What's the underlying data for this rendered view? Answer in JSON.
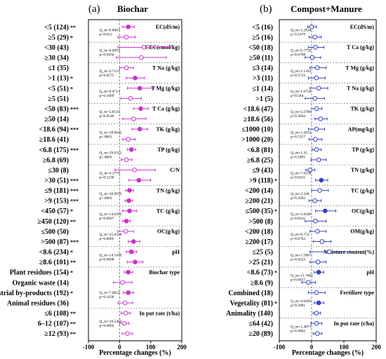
{
  "chart_data": [
    {
      "type": "forest",
      "panel_letter": "(a)",
      "title": "Biochar",
      "xlabel": "Percentage changes (%)",
      "xlim": [
        -100,
        200
      ],
      "xticks": [
        "-100",
        "0",
        "100",
        "200"
      ],
      "color": "#cc33cc",
      "groups": [
        {
          "name": "EC(dS/m)",
          "q": "Q_m=0.8407",
          "p": "p=0.812",
          "rows": [
            {
              "label": "<5 (124)",
              "sig": "**",
              "est": 28,
              "lo": 10,
              "hi": 48,
              "filled": true
            },
            {
              "label": "≥5 (29)",
              "sig": "*",
              "est": 22,
              "lo": -5,
              "hi": 50,
              "filled": false
            }
          ]
        },
        {
          "name": "CEC(cmol/kg)",
          "q": "Q_m=0.0093",
          "p": "p=0.9456",
          "rows": [
            {
              "label": "<30 (43)",
              "sig": "",
              "est": 78,
              "lo": -5,
              "hi": 165,
              "filled": false
            },
            {
              "label": "≥30 (34)",
              "sig": "",
              "est": 70,
              "lo": -10,
              "hi": 150,
              "filled": false
            }
          ]
        },
        {
          "name": "T Na (g/kg)",
          "q": "Q_m=5.7121",
          "p": "p=0.0575",
          "rows": [
            {
              "label": "≤1 (35)",
              "sig": "",
              "est": 22,
              "lo": 0,
              "hi": 45,
              "filled": false
            },
            {
              "label": ">1 (13)",
              "sig": "*",
              "est": 50,
              "lo": 22,
              "hi": 80,
              "filled": true
            }
          ]
        },
        {
          "name": "T Mg (g/kg)",
          "q": "Q_m=0.4713",
          "p": "p=0.1069",
          "rows": [
            {
              "label": "<5 (51)",
              "sig": "*",
              "est": 65,
              "lo": 25,
              "hi": 110,
              "filled": true
            },
            {
              "label": "≥5 (51)",
              "sig": "",
              "est": 35,
              "lo": 5,
              "hi": 70,
              "filled": false
            }
          ]
        },
        {
          "name": "T Ca (g/kg)",
          "q": "Q_m=5.8135",
          "p": "p=0.0546",
          "rows": [
            {
              "label": "<50 (83)",
              "sig": "***",
              "est": 68,
              "lo": 45,
              "hi": 92,
              "filled": true
            },
            {
              "label": "≥50 (14)",
              "sig": "",
              "est": 45,
              "lo": 10,
              "hi": 85,
              "filled": false
            }
          ]
        },
        {
          "name": "TK (g/kg)",
          "q": "Q_m=18.0012",
          "p": "p=.0001",
          "rows": [
            {
              "label": "<18.6 (94)",
              "sig": "***",
              "est": 65,
              "lo": 40,
              "hi": 90,
              "filled": true
            },
            {
              "label": "≥18.6 (41)",
              "sig": "",
              "est": 28,
              "lo": 10,
              "hi": 50,
              "filled": false
            }
          ]
        },
        {
          "name": "TP (g/kg)",
          "q": "Q_m=19.0351",
          "p": "p=.0001",
          "rows": [
            {
              "label": "<6.8 (175)",
              "sig": "***",
              "est": 38,
              "lo": 25,
              "hi": 52,
              "filled": true
            },
            {
              "label": "≥6.8 (69)",
              "sig": "",
              "est": 22,
              "lo": 5,
              "hi": 40,
              "filled": false
            }
          ]
        },
        {
          "name": "C/N",
          "q": "Q_m=4.1776",
          "p": "p=0.1230",
          "rows": [
            {
              "label": "≤30 (8)",
              "sig": "",
              "est": 48,
              "lo": -15,
              "hi": 115,
              "filled": false
            },
            {
              "label": ">30 (51)",
              "sig": "***",
              "est": 62,
              "lo": 30,
              "hi": 100,
              "filled": true
            }
          ]
        },
        {
          "name": "TN (g/kg)",
          "q": "Q_m=18.9955",
          "p": "p=.0001",
          "rows": [
            {
              "label": "≤9 (181)",
              "sig": "***",
              "est": 32,
              "lo": 20,
              "hi": 45,
              "filled": true
            },
            {
              "label": ">9 (153)",
              "sig": "***",
              "est": 30,
              "lo": 18,
              "hi": 42,
              "filled": true
            }
          ]
        },
        {
          "name": "TC (g/kg)",
          "q": "Q_m=14.6395",
          "p": "p=0.0007",
          "rows": [
            {
              "label": "<450 (57)",
              "sig": "*",
              "est": 32,
              "lo": 10,
              "hi": 55,
              "filled": true
            },
            {
              "label": "≥450 (120)",
              "sig": "**",
              "est": 22,
              "lo": 10,
              "hi": 35,
              "filled": true
            }
          ]
        },
        {
          "name": "OC(g/kg)",
          "q": "Q_m=15.0339",
          "p": "p=0.0005",
          "rows": [
            {
              "label": "≤500 (50)",
              "sig": "",
              "est": 20,
              "lo": -5,
              "hi": 45,
              "filled": false
            },
            {
              "label": ">500 (87)",
              "sig": "***",
              "est": 45,
              "lo": 28,
              "hi": 65,
              "filled": true
            }
          ]
        },
        {
          "name": "pH",
          "q": "Q_m=14.1479",
          "p": "p=0.0008",
          "rows": [
            {
              "label": "<8.6 (234)",
              "sig": "*",
              "est": 38,
              "lo": 22,
              "hi": 55,
              "filled": true
            },
            {
              "label": "≥8.6 (101)",
              "sig": "**",
              "est": 50,
              "lo": 25,
              "hi": 75,
              "filled": true
            }
          ]
        },
        {
          "name": "Biochar type",
          "q": "",
          "p": "",
          "rows": [
            {
              "label": "Plant residues (154)",
              "sig": "*",
              "est": 28,
              "lo": 15,
              "hi": 42,
              "filled": true
            },
            {
              "label": "Organic waste (14)",
              "sig": "",
              "est": 10,
              "lo": -20,
              "hi": 40,
              "filled": false
            },
            {
              "label": "Industrial by-products (192)",
              "sig": "*",
              "est": 28,
              "lo": 12,
              "hi": 45,
              "filled": true
            },
            {
              "label": "Animal residues (36)",
              "sig": "",
              "est": 18,
              "lo": -5,
              "hi": 42,
              "filled": false
            }
          ],
          "q2": "Q_m=7.6052",
          "p2": "p=0.1038"
        },
        {
          "name": "In put rate (t/ha)",
          "q": "Q_m=19.5484",
          "p": "p=0.0002",
          "rows": [
            {
              "label": "≤6 (108)",
              "sig": "**",
              "est": 20,
              "lo": 5,
              "hi": 35,
              "filled": false
            },
            {
              "label": "6–12 (107)",
              "sig": "**",
              "est": 15,
              "lo": 0,
              "hi": 30,
              "filled": false
            },
            {
              "label": "≥12 (93)",
              "sig": "**",
              "est": 25,
              "lo": 8,
              "hi": 42,
              "filled": false
            }
          ]
        }
      ]
    },
    {
      "type": "forest",
      "panel_letter": "(b)",
      "title": "Compost+Manure",
      "xlabel": "Percentage changes (%)",
      "xlim": [
        -100,
        200
      ],
      "xticks": [
        "-100",
        "0",
        "100",
        "200"
      ],
      "color": "#3344bb",
      "groups": [
        {
          "name": "EC(dS/m)",
          "q": "Q_m=1.2834",
          "p": "p=0.5479",
          "rows": [
            {
              "label": "<5 (16)",
              "sig": "",
              "est": 0,
              "lo": -12,
              "hi": 15,
              "filled": false
            },
            {
              "label": "≥5 (16)",
              "sig": "",
              "est": 10,
              "lo": -8,
              "hi": 30,
              "filled": false
            }
          ]
        },
        {
          "name": "T Ca (g/kg)",
          "q": "Q_m=0.7750",
          "p": "p=0.6788",
          "rows": [
            {
              "label": "<50 (18)",
              "sig": "",
              "est": 12,
              "lo": -10,
              "hi": 38,
              "filled": false
            },
            {
              "label": "≥50 (11)",
              "sig": "",
              "est": 2,
              "lo": -20,
              "hi": 28,
              "filled": false
            }
          ]
        },
        {
          "name": "T Mg (g/kg)",
          "q": "Q_m=1.1162",
          "p": "p=0.5723",
          "rows": [
            {
              "label": "≤3 (14)",
              "sig": "",
              "est": 18,
              "lo": -5,
              "hi": 45,
              "filled": false
            },
            {
              "label": ">3 (11)",
              "sig": "",
              "est": 15,
              "lo": -10,
              "hi": 42,
              "filled": false
            }
          ]
        },
        {
          "name": "T Na (g/kg)",
          "q": "Q_m=1.0756",
          "p": "p=0.584",
          "rows": [
            {
              "label": "≤1 (14)",
              "sig": "",
              "est": 22,
              "lo": -5,
              "hi": 50,
              "filled": false
            },
            {
              "label": ">1 (5)",
              "sig": "",
              "est": 10,
              "lo": -20,
              "hi": 40,
              "filled": false
            }
          ]
        },
        {
          "name": "TK (g/kg)",
          "q": "Q_m=2.3786",
          "p": "p=0.3044",
          "rows": [
            {
              "label": "<18.6 (47)",
              "sig": "",
              "est": 15,
              "lo": 0,
              "hi": 32,
              "filled": false
            },
            {
              "label": "≥18.6 (56)",
              "sig": "",
              "est": 28,
              "lo": 10,
              "hi": 48,
              "filled": false
            }
          ]
        },
        {
          "name": "AP(mg/kg)",
          "q": "Q_m=1.2633",
          "p": "p=0.5317",
          "rows": [
            {
              "label": "≤1000 (10)",
              "sig": "",
              "est": 15,
              "lo": -10,
              "hi": 40,
              "filled": false
            },
            {
              "label": ">1000 (20)",
              "sig": "",
              "est": 12,
              "lo": -8,
              "hi": 32,
              "filled": false
            }
          ]
        },
        {
          "name": "TP (g/kg)",
          "q": "Q_m=1.35",
          "p": "p=0.5091",
          "rows": [
            {
              "label": "<6.8 (81)",
              "sig": "",
              "est": 15,
              "lo": 2,
              "hi": 30,
              "filled": false
            },
            {
              "label": "≥6.8 (25)",
              "sig": "",
              "est": 22,
              "lo": -2,
              "hi": 45,
              "filled": false
            }
          ]
        },
        {
          "name": "TN (g/kg)",
          "q": "Q_m=7.6238",
          "p": "p=0.0221",
          "rows": [
            {
              "label": "≤9 (43)",
              "sig": "",
              "est": -5,
              "lo": -18,
              "hi": 10,
              "filled": false
            },
            {
              "label": ">9 (118)",
              "sig": "*",
              "est": 30,
              "lo": 12,
              "hi": 50,
              "filled": true
            }
          ]
        },
        {
          "name": "TC (g/kg)",
          "q": "Q_m=2.228",
          "p": "p=0.3282",
          "rows": [
            {
              "label": "<200 (14)",
              "sig": "",
              "est": 25,
              "lo": 0,
              "hi": 52,
              "filled": false
            },
            {
              "label": "≥200 (21)",
              "sig": "",
              "est": 10,
              "lo": -8,
              "hi": 30,
              "filled": false
            }
          ]
        },
        {
          "name": "OC(g/kg)",
          "q": "Q_m=5.8346",
          "p": "p=0.0541",
          "rows": [
            {
              "label": "≤500 (35)",
              "sig": "*",
              "est": 42,
              "lo": 12,
              "hi": 75,
              "filled": true
            },
            {
              "label": ">500 (8)",
              "sig": "",
              "est": 12,
              "lo": -20,
              "hi": 45,
              "filled": false
            }
          ]
        },
        {
          "name": "OM(g/kg)",
          "q": "Q_m=0.753",
          "p": "p=0.6763",
          "rows": [
            {
              "label": "<200 (18)",
              "sig": "",
              "est": 18,
              "lo": -5,
              "hi": 45,
              "filled": false
            },
            {
              "label": "≥200 (17)",
              "sig": "",
              "est": 32,
              "lo": 5,
              "hi": 60,
              "filled": false
            }
          ]
        },
        {
          "name": "Moisture content(%)",
          "q": "Q_m=1.5867",
          "p": "p=0.4523",
          "rows": [
            {
              "label": "≤25 (5)",
              "sig": "",
              "est": 55,
              "lo": -5,
              "hi": 118,
              "filled": false
            },
            {
              "label": ">25 (21)",
              "sig": "",
              "est": 20,
              "lo": -5,
              "hi": 45,
              "filled": false
            }
          ]
        },
        {
          "name": "pH",
          "q": "Q_m=11.7682",
          "p": "p=0.0017",
          "rows": [
            {
              "label": "<8.6 (73)",
              "sig": "*",
              "est": 22,
              "lo": 8,
              "hi": 38,
              "filled": true
            },
            {
              "label": "≥8.6 (9)",
              "sig": "",
              "est": -10,
              "lo": -30,
              "hi": 12,
              "filled": false
            }
          ]
        },
        {
          "name": "Fertilizer type",
          "q": "Q_m=4.6495",
          "p": "p=0.2001",
          "rows": [
            {
              "label": "Combined (18)",
              "sig": "",
              "est": 15,
              "lo": -10,
              "hi": 42,
              "filled": false
            },
            {
              "label": "Vegetality (81)",
              "sig": "*",
              "est": 22,
              "lo": 8,
              "hi": 38,
              "filled": true
            },
            {
              "label": "Animality (140)",
              "sig": "",
              "est": 15,
              "lo": 5,
              "hi": 28,
              "filled": false
            }
          ]
        },
        {
          "name": "In put rate (t/ha)",
          "q": "Q_m=1.4673",
          "p": "p=0.4802",
          "rows": [
            {
              "label": "≤64 (42)",
              "sig": "",
              "est": 15,
              "lo": -2,
              "hi": 32,
              "filled": false
            },
            {
              "label": "≥20 (89)",
              "sig": "",
              "est": 18,
              "lo": 5,
              "hi": 32,
              "filled": false
            }
          ]
        }
      ]
    }
  ]
}
